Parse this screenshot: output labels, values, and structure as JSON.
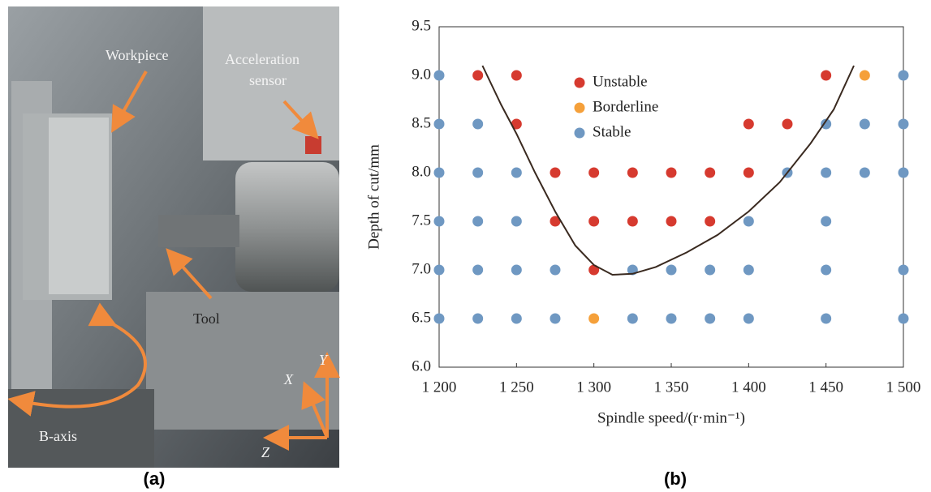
{
  "photo": {
    "labels": [
      "Workpiece",
      "Acceleration",
      "sensor",
      "Tool",
      "B-axis",
      "X",
      "Y",
      "Z"
    ],
    "caption": "(a)"
  },
  "chart_data": {
    "type": "scatter",
    "caption": "(b)",
    "x_label": "Spindle speed/(r·min⁻¹)",
    "y_label": "Depth of cut/mm",
    "xlim": [
      1200,
      1500
    ],
    "xticks": [
      {
        "value": 1200,
        "label": "1 200"
      },
      {
        "value": 1250,
        "label": "1 250"
      },
      {
        "value": 1300,
        "label": "1 300"
      },
      {
        "value": 1350,
        "label": "1 350"
      },
      {
        "value": 1400,
        "label": "1 400"
      },
      {
        "value": 1450,
        "label": "1 450"
      },
      {
        "value": 1500,
        "label": "1 500"
      }
    ],
    "ylim": [
      6,
      9.5
    ],
    "yticks": [
      {
        "value": 6,
        "label": "6.0"
      },
      6.5,
      {
        "value": 7,
        "label": "7.0"
      },
      7.5,
      {
        "value": 8,
        "label": "8.0"
      },
      8.5,
      {
        "value": 9,
        "label": "9.0"
      },
      9.5
    ],
    "legend": "upper center",
    "series": [
      {
        "name": "Unstable",
        "color": "#d63a2f",
        "x": [
          1225,
          1250,
          1450,
          1250,
          1400,
          1425,
          1275,
          1300,
          1325,
          1350,
          1375,
          1400,
          1275,
          1300,
          1325,
          1350,
          1375,
          1300
        ],
        "y": [
          9,
          9,
          9,
          8.5,
          8.5,
          8.5,
          8,
          8,
          8,
          8,
          8,
          8,
          7.5,
          7.5,
          7.5,
          7.5,
          7.5,
          7
        ]
      },
      {
        "name": "Borderline",
        "color": "#f5a03a",
        "x": [
          1475,
          1300
        ],
        "y": [
          9,
          6.5
        ]
      },
      {
        "name": "Stable",
        "color": "#6f98c2",
        "x": [
          1200,
          1500,
          1200,
          1225,
          1450,
          1475,
          1500,
          1200,
          1225,
          1250,
          1425,
          1450,
          1475,
          1500,
          1200,
          1225,
          1250,
          1400,
          1450,
          1200,
          1225,
          1250,
          1275,
          1325,
          1350,
          1375,
          1400,
          1450,
          1500,
          1200,
          1225,
          1250,
          1275,
          1325,
          1350,
          1375,
          1400,
          1450,
          1500
        ],
        "y": [
          9,
          9,
          8.5,
          8.5,
          8.5,
          8.5,
          8.5,
          8,
          8,
          8,
          8,
          8,
          8,
          8,
          7.5,
          7.5,
          7.5,
          7.5,
          7.5,
          7,
          7,
          7,
          7,
          7,
          7,
          7,
          7,
          7,
          7,
          6.5,
          6.5,
          6.5,
          6.5,
          6.5,
          6.5,
          6.5,
          6.5,
          6.5,
          6.5
        ]
      }
    ],
    "curve": {
      "color": "#3a2a20",
      "x": [
        1228,
        1240,
        1250,
        1262,
        1275,
        1288,
        1300,
        1312,
        1325,
        1340,
        1360,
        1380,
        1400,
        1420,
        1440,
        1455,
        1468
      ],
      "y": [
        9.1,
        8.7,
        8.4,
        8.0,
        7.6,
        7.25,
        7.05,
        6.95,
        6.96,
        7.03,
        7.18,
        7.36,
        7.6,
        7.9,
        8.3,
        8.65,
        9.1
      ]
    }
  }
}
